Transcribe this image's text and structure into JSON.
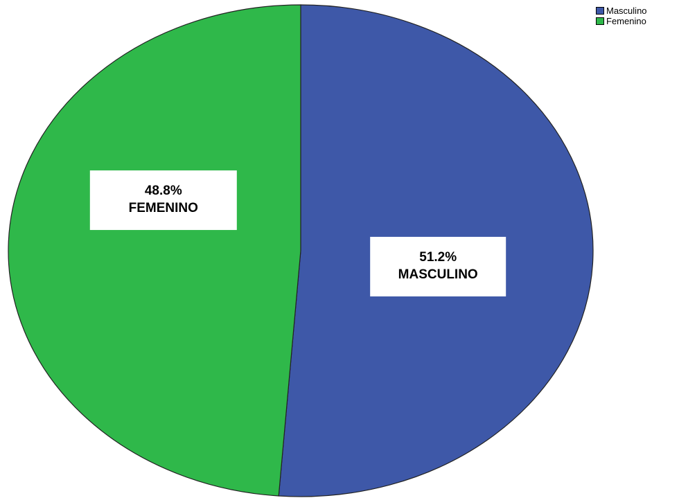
{
  "chart_data": {
    "type": "pie",
    "categories": [
      "Masculino",
      "Femenino"
    ],
    "values": [
      51.2,
      48.8
    ],
    "colors": [
      "#3e58a8",
      "#2fb84a"
    ],
    "data_labels": [
      {
        "value": "51.2%",
        "category": "MASCULINO"
      },
      {
        "value": "48.8%",
        "category": "FEMENINO"
      }
    ],
    "legend": {
      "position": "top-right",
      "items": [
        {
          "label": "Masculino",
          "color": "#3e58a8"
        },
        {
          "label": "Femenino",
          "color": "#2fb84a"
        }
      ]
    }
  }
}
